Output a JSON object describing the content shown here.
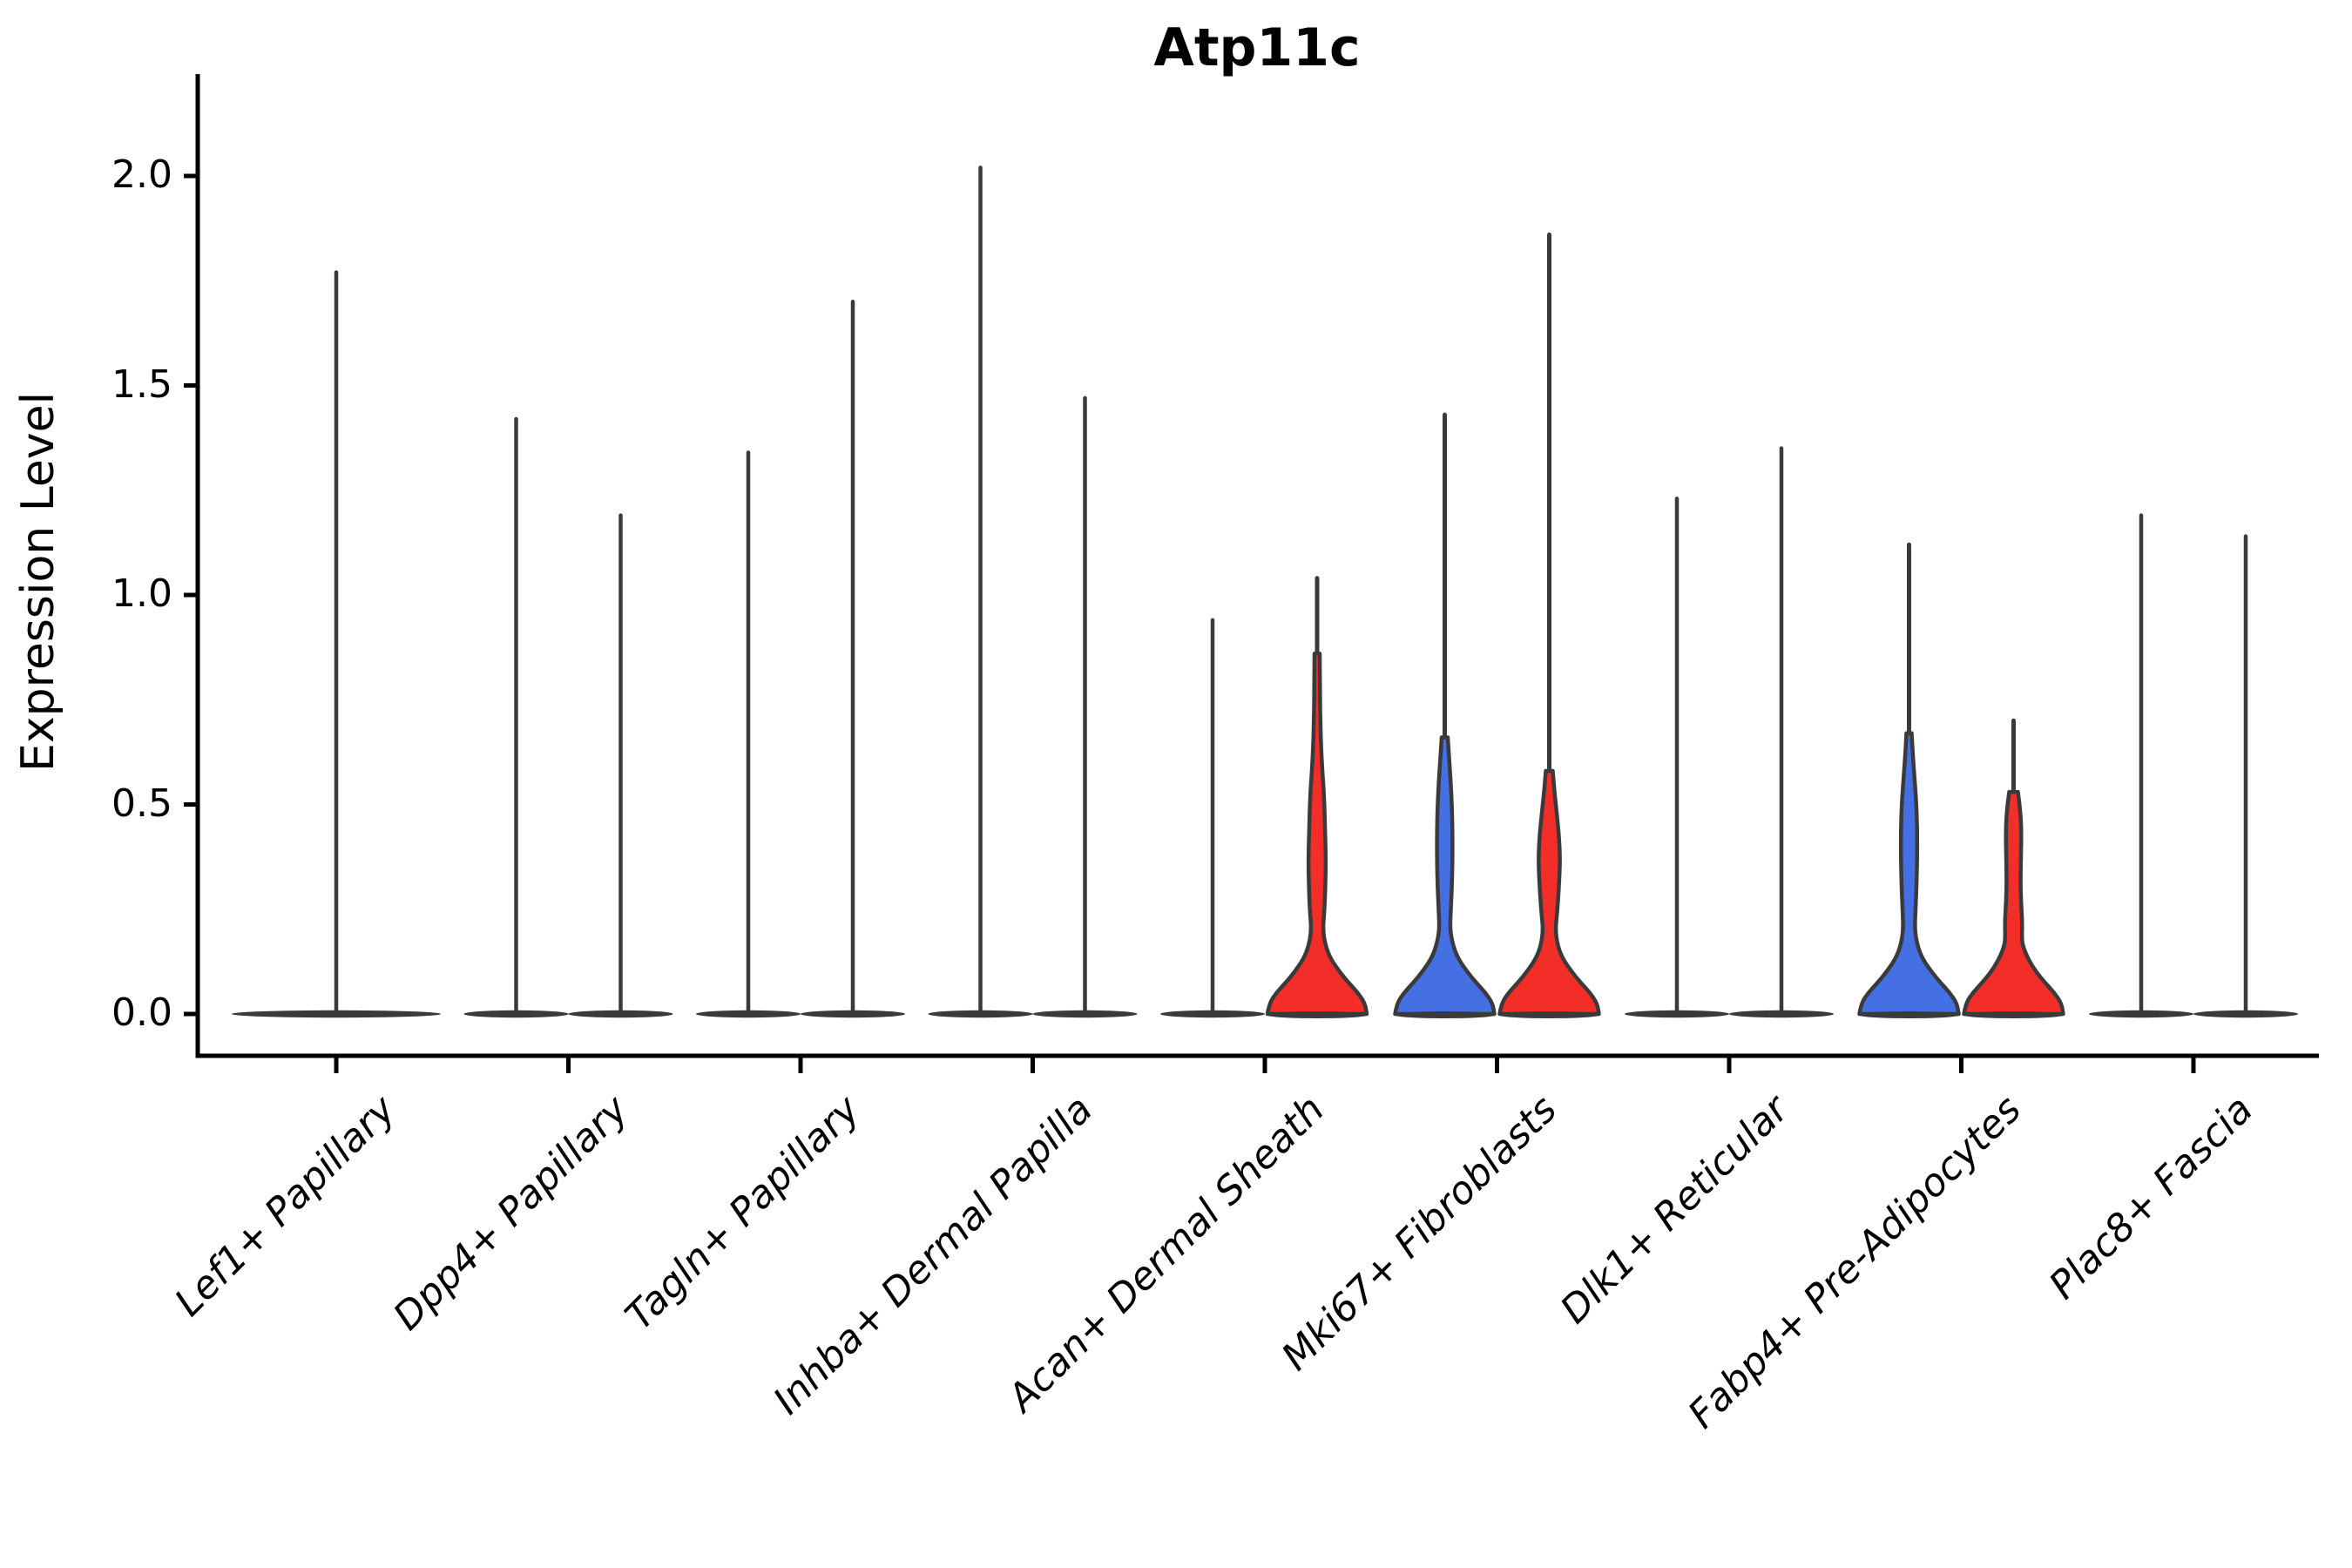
{
  "page": {
    "background": "#ffffff"
  },
  "chart_data": {
    "type": "violin",
    "title": "Atp11c",
    "ylabel": "Expression Level",
    "xlabel": "",
    "grid": false,
    "legend_position": "none",
    "y_tick_values": [
      0.0,
      0.5,
      1.0,
      1.5,
      2.0
    ],
    "y_tick_labels": [
      "0.0",
      "0.5",
      "1.0",
      "1.5",
      "2.0"
    ],
    "ylim": [
      -0.1,
      2.24
    ],
    "colors": {
      "red": "#f32d28",
      "blue": "#4470e4",
      "outline": "#3a3a3a",
      "axis": "#000000"
    },
    "categories": [
      "Lef1+ Papillary",
      "Dpp4+ Papillary",
      "Tagln+ Papillary",
      "Inhba+ Dermal Papilla",
      "Acan+ Dermal Sheath",
      "Mki67+ Fibroblasts",
      "Dlk1+ Reticular",
      "Fabp4+ Pre-Adipocytes",
      "Plac8+ Fascia"
    ],
    "groups": [
      {
        "category": "Lef1+ Papillary",
        "violins": [
          {
            "pos": "center",
            "style": "line",
            "color": "none",
            "max": 1.77,
            "half_width": 120
          }
        ]
      },
      {
        "category": "Dpp4+ Papillary",
        "violins": [
          {
            "pos": "left",
            "style": "line",
            "color": "none",
            "max": 1.42,
            "half_width": 60
          },
          {
            "pos": "right",
            "style": "line",
            "color": "none",
            "max": 1.19,
            "half_width": 60
          }
        ]
      },
      {
        "category": "Tagln+ Papillary",
        "violins": [
          {
            "pos": "left",
            "style": "line",
            "color": "none",
            "max": 1.34,
            "half_width": 60
          },
          {
            "pos": "right",
            "style": "line",
            "color": "none",
            "max": 1.7,
            "half_width": 60
          }
        ]
      },
      {
        "category": "Inhba+ Dermal Papilla",
        "violins": [
          {
            "pos": "left",
            "style": "line",
            "color": "none",
            "max": 2.02,
            "half_width": 60
          },
          {
            "pos": "right",
            "style": "line",
            "color": "none",
            "max": 1.47,
            "half_width": 60
          }
        ]
      },
      {
        "category": "Acan+ Dermal Sheath",
        "violins": [
          {
            "pos": "left",
            "style": "line",
            "color": "none",
            "max": 0.94,
            "half_width": 60
          },
          {
            "pos": "right",
            "style": "bell",
            "color": "red",
            "max": 1.04,
            "half_width": 60,
            "profile": [
              [
                0,
                57
              ],
              [
                0.025,
                55
              ],
              [
                0.05,
                47
              ],
              [
                0.075,
                36
              ],
              [
                0.1,
                26
              ],
              [
                0.13,
                16
              ],
              [
                0.16,
                10
              ],
              [
                0.2,
                6.5
              ],
              [
                0.25,
                8.5
              ],
              [
                0.31,
                9.5
              ],
              [
                0.37,
                10
              ],
              [
                0.45,
                9
              ],
              [
                0.52,
                8
              ],
              [
                0.58,
                6
              ],
              [
                0.64,
                4.5
              ],
              [
                0.72,
                3.5
              ],
              [
                0.8,
                3.2
              ],
              [
                0.86,
                3
              ]
            ]
          }
        ]
      },
      {
        "category": "Mki67+ Fibroblasts",
        "violins": [
          {
            "pos": "left",
            "style": "bell",
            "color": "blue",
            "max": 1.43,
            "half_width": 60,
            "profile": [
              [
                0,
                57
              ],
              [
                0.025,
                55
              ],
              [
                0.05,
                47
              ],
              [
                0.075,
                36
              ],
              [
                0.1,
                26
              ],
              [
                0.13,
                16
              ],
              [
                0.16,
                10
              ],
              [
                0.2,
                6
              ],
              [
                0.25,
                7
              ],
              [
                0.32,
                8.5
              ],
              [
                0.4,
                9
              ],
              [
                0.48,
                8.5
              ],
              [
                0.55,
                7
              ],
              [
                0.61,
                5
              ],
              [
                0.66,
                3.5
              ]
            ]
          },
          {
            "pos": "right",
            "style": "bell",
            "color": "red",
            "max": 1.86,
            "half_width": 60,
            "profile": [
              [
                0,
                57
              ],
              [
                0.025,
                55
              ],
              [
                0.05,
                47
              ],
              [
                0.075,
                36
              ],
              [
                0.1,
                26
              ],
              [
                0.13,
                16
              ],
              [
                0.16,
                10
              ],
              [
                0.2,
                7
              ],
              [
                0.24,
                9
              ],
              [
                0.3,
                11
              ],
              [
                0.37,
                12.5
              ],
              [
                0.43,
                11
              ],
              [
                0.49,
                8
              ],
              [
                0.54,
                5.5
              ],
              [
                0.58,
                4
              ]
            ]
          }
        ]
      },
      {
        "category": "Dlk1+ Reticular",
        "violins": [
          {
            "pos": "left",
            "style": "line",
            "color": "none",
            "max": 1.23,
            "half_width": 60
          },
          {
            "pos": "right",
            "style": "line",
            "color": "none",
            "max": 1.35,
            "half_width": 60
          }
        ]
      },
      {
        "category": "Fabp4+ Pre-Adipocytes",
        "violins": [
          {
            "pos": "left",
            "style": "bell",
            "color": "blue",
            "max": 1.12,
            "half_width": 60,
            "profile": [
              [
                0,
                57
              ],
              [
                0.025,
                55
              ],
              [
                0.05,
                47
              ],
              [
                0.075,
                36
              ],
              [
                0.1,
                26
              ],
              [
                0.13,
                16
              ],
              [
                0.16,
                10
              ],
              [
                0.2,
                6.5
              ],
              [
                0.25,
                7.5
              ],
              [
                0.33,
                9
              ],
              [
                0.42,
                9.5
              ],
              [
                0.5,
                8.5
              ],
              [
                0.57,
                6
              ],
              [
                0.63,
                4
              ],
              [
                0.67,
                3
              ]
            ]
          },
          {
            "pos": "right",
            "style": "bell",
            "color": "red",
            "max": 0.7,
            "half_width": 60,
            "profile": [
              [
                0,
                57
              ],
              [
                0.025,
                55
              ],
              [
                0.05,
                47
              ],
              [
                0.075,
                36
              ],
              [
                0.1,
                26
              ],
              [
                0.13,
                17
              ],
              [
                0.16,
                11
              ],
              [
                0.18,
                9.5
              ],
              [
                0.22,
                10
              ],
              [
                0.27,
                8.5
              ],
              [
                0.32,
                8
              ],
              [
                0.38,
                8.5
              ],
              [
                0.44,
                9
              ],
              [
                0.49,
                7.5
              ],
              [
                0.53,
                5
              ]
            ]
          }
        ]
      },
      {
        "category": "Plac8+ Fascia",
        "violins": [
          {
            "pos": "left",
            "style": "line",
            "color": "none",
            "max": 1.19,
            "half_width": 60
          },
          {
            "pos": "right",
            "style": "line",
            "color": "none",
            "max": 1.14,
            "half_width": 60
          }
        ]
      }
    ]
  }
}
